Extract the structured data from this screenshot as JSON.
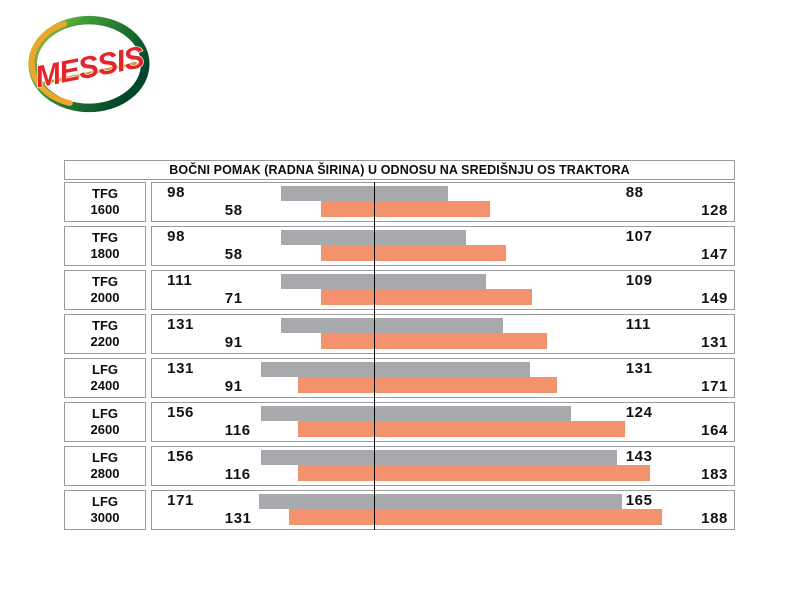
{
  "logo": {
    "text": "MESSIS"
  },
  "colors": {
    "gray_bar": "#A7A9AC",
    "orange_bar": "#F4926E",
    "box_border": "#9B9B9B",
    "axis_line": "#000000",
    "logo_red": "#E5252B",
    "logo_green_dark": "#00462A",
    "logo_green_light": "#B5CF3F",
    "logo_gold": "#ECA62C"
  },
  "chart_data": {
    "type": "bar",
    "subtype": "horizontal-offset-span",
    "title": "BOČNI POMAK (RADNA ŠIRINA) U ODNOSU NA SREDIŠNJU OS TRAKTORA",
    "legend": "none",
    "center_line_pct": 38.1,
    "series": [
      {
        "name": "gray-bar",
        "color": "#A7A9AC",
        "value_keys": [
          "gray_left",
          "gray_right"
        ]
      },
      {
        "name": "orange-bar",
        "color": "#F4926E",
        "value_keys": [
          "orange_left",
          "orange_right"
        ]
      }
    ],
    "rows": [
      {
        "model": "TFG",
        "size": "1600",
        "gray_left": "98",
        "gray_right": "88",
        "orange_left": "58",
        "orange_right": "128",
        "gray_bar": [
          22.2,
          50.9
        ],
        "orange_bar": [
          29.0,
          58.1
        ]
      },
      {
        "model": "TFG",
        "size": "1800",
        "gray_left": "98",
        "gray_right": "107",
        "orange_left": "58",
        "orange_right": "147",
        "gray_bar": [
          22.2,
          54.0
        ],
        "orange_bar": [
          29.0,
          60.8
        ]
      },
      {
        "model": "TFG",
        "size": "2000",
        "gray_left": "111",
        "gray_right": "109",
        "orange_left": "71",
        "orange_right": "149",
        "gray_bar": [
          22.2,
          57.4
        ],
        "orange_bar": [
          29.0,
          65.3
        ]
      },
      {
        "model": "TFG",
        "size": "2200",
        "gray_left": "131",
        "gray_right": "111",
        "orange_left": "91",
        "orange_right": "131",
        "gray_bar": [
          22.2,
          60.3
        ],
        "orange_bar": [
          29.0,
          67.9
        ]
      },
      {
        "model": "LFG",
        "size": "2400",
        "gray_left": "131",
        "gray_right": "131",
        "orange_left": "91",
        "orange_right": "171",
        "gray_bar": [
          18.7,
          64.9
        ],
        "orange_bar": [
          25.1,
          69.6
        ]
      },
      {
        "model": "LFG",
        "size": "2600",
        "gray_left": "156",
        "gray_right": "124",
        "orange_left": "116",
        "orange_right": "164",
        "gray_bar": [
          18.7,
          72.0
        ],
        "orange_bar": [
          25.1,
          81.3
        ]
      },
      {
        "model": "LFG",
        "size": "2800",
        "gray_left": "156",
        "gray_right": "143",
        "orange_left": "116",
        "orange_right": "183",
        "gray_bar": [
          18.7,
          79.9
        ],
        "orange_bar": [
          25.1,
          85.6
        ]
      },
      {
        "model": "LFG",
        "size": "3000",
        "gray_left": "171",
        "gray_right": "165",
        "orange_left": "131",
        "orange_right": "188",
        "gray_bar": [
          18.4,
          80.8
        ],
        "orange_bar": [
          23.5,
          87.6
        ]
      }
    ]
  }
}
